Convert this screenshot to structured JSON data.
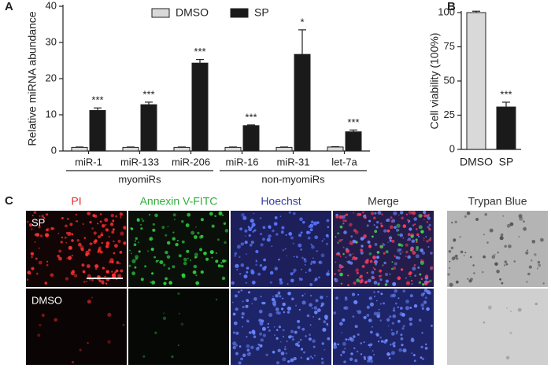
{
  "chart_data": [
    {
      "panel": "A",
      "type": "bar",
      "ylabel": "Relative miRNA abundance",
      "categories": [
        "miR-1",
        "miR-133",
        "miR-206",
        "miR-16",
        "miR-31",
        "let-7a"
      ],
      "category_groups": [
        "myomiRs",
        "myomiRs",
        "myomiRs",
        "non-myomiRs",
        "non-myomiRs",
        "non-myomiRs"
      ],
      "series": [
        {
          "name": "DMSO",
          "color": "#d9d9d9",
          "values": [
            1,
            1,
            1,
            1,
            1,
            1.1
          ],
          "errors": [
            0.1,
            0.1,
            0.1,
            0.1,
            0.1,
            0.1
          ]
        },
        {
          "name": "SP",
          "color": "#1a1a1a",
          "values": [
            11.2,
            12.8,
            24.3,
            7.0,
            26.7,
            5.3
          ],
          "errors": [
            0.7,
            0.7,
            1.0,
            0.2,
            6.8,
            0.5
          ],
          "annotations": [
            "***",
            "***",
            "***",
            "***",
            "*",
            "***"
          ]
        }
      ],
      "ylim": [
        0,
        40
      ],
      "yticks": [
        0,
        10,
        20,
        30,
        40
      ],
      "legend": "top"
    },
    {
      "panel": "B",
      "type": "bar",
      "ylabel": "Cell viability (100%)",
      "categories": [
        "DMSO",
        "SP"
      ],
      "values": [
        100,
        31
      ],
      "errors": [
        1,
        3.5
      ],
      "colors": [
        "#d9d9d9",
        "#1a1a1a"
      ],
      "annotations": [
        null,
        "***"
      ],
      "ylim": [
        0,
        100
      ],
      "yticks": [
        0,
        25,
        50,
        75,
        100
      ]
    }
  ],
  "panel_c": {
    "label": "C",
    "columns": [
      "PI",
      "Annexin V-FITC",
      "Hoechst",
      "Merge",
      "Trypan Blue"
    ],
    "rows": [
      "SP",
      "DMSO"
    ]
  }
}
